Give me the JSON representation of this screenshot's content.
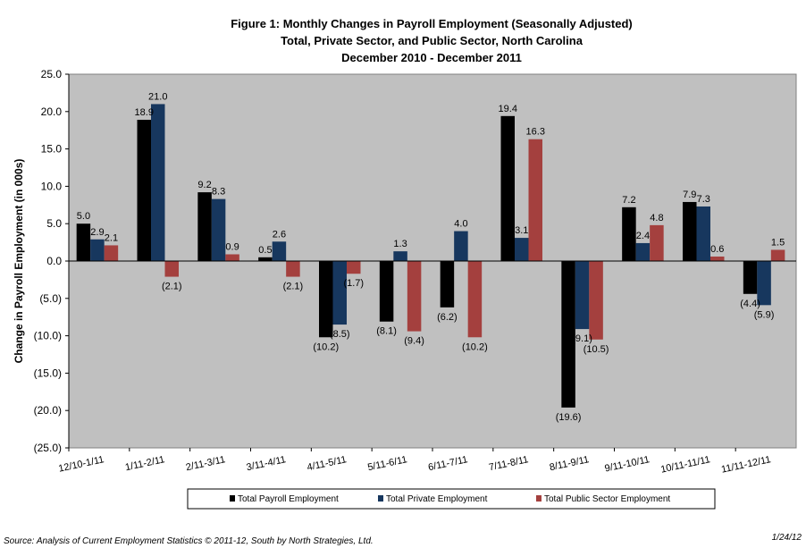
{
  "chart_data": {
    "type": "bar",
    "title": [
      "Figure 1: Monthly Changes in Payroll Employment (Seasonally Adjusted)",
      "Total, Private Sector, and Public Sector, North Carolina",
      "December 2010 -  December 2011"
    ],
    "ylabel": "Change in Payroll Employment (in 000s)",
    "xlabel": "",
    "ylim": [
      -25,
      25
    ],
    "ytick_step": 5,
    "ytick_labels": [
      "25.0",
      "20.0",
      "15.0",
      "10.0",
      "5.0",
      "0.0",
      "(5.0)",
      "(10.0)",
      "(15.0)",
      "(20.0)",
      "(25.0)"
    ],
    "grid": false,
    "legend_position": "bottom",
    "categories": [
      "12/10-1/11",
      "1/11-2/11",
      "2/11-3/11",
      "3/11-4/11",
      "4/11-5/11",
      "5/11-6/11",
      "6/11-7/11",
      "7/11-8/11",
      "8/11-9/11",
      "9/11-10/11",
      "10/11-11/11",
      "11/11-12/11"
    ],
    "series": [
      {
        "name": "Total Payroll Employment",
        "color": "#000000",
        "values": [
          5.0,
          18.9,
          9.2,
          0.5,
          -10.2,
          -8.1,
          -6.2,
          19.4,
          -19.6,
          7.2,
          7.9,
          -4.4
        ],
        "labels": [
          "5.0",
          "18.9",
          "9.2",
          "0.5",
          "(10.2)",
          "(8.1)",
          "(6.2)",
          "19.4",
          "(19.6)",
          "7.2",
          "7.9",
          "(4.4)"
        ]
      },
      {
        "name": "Total Private Employment",
        "color": "#17375E",
        "values": [
          2.9,
          21.0,
          8.3,
          2.6,
          -8.5,
          1.3,
          4.0,
          3.1,
          -9.1,
          2.4,
          7.3,
          -5.9
        ],
        "labels": [
          "2.9",
          "21.0",
          "8.3",
          "2.6",
          "(8.5)",
          "1.3",
          "4.0",
          "3.1",
          "(9.1)",
          "2.4",
          "7.3",
          "(5.9)"
        ]
      },
      {
        "name": "Total Public Sector Employment",
        "color": "#A4403E",
        "values": [
          2.1,
          -2.1,
          0.9,
          -2.1,
          -1.7,
          -9.4,
          -10.2,
          16.3,
          -10.5,
          4.8,
          0.6,
          1.5
        ],
        "labels": [
          "2.1",
          "(2.1)",
          "0.9",
          "(2.1)",
          "(1.7)",
          "(9.4)",
          "(10.2)",
          "16.3",
          "(10.5)",
          "4.8",
          "0.6",
          "1.5"
        ]
      }
    ],
    "plot_background": "#C0C0C0"
  },
  "footer": {
    "source": "Source:  Analysis of Current Employment Statistics  © 2011-12, South by North Strategies, Ltd.",
    "date": "1/24/12"
  }
}
